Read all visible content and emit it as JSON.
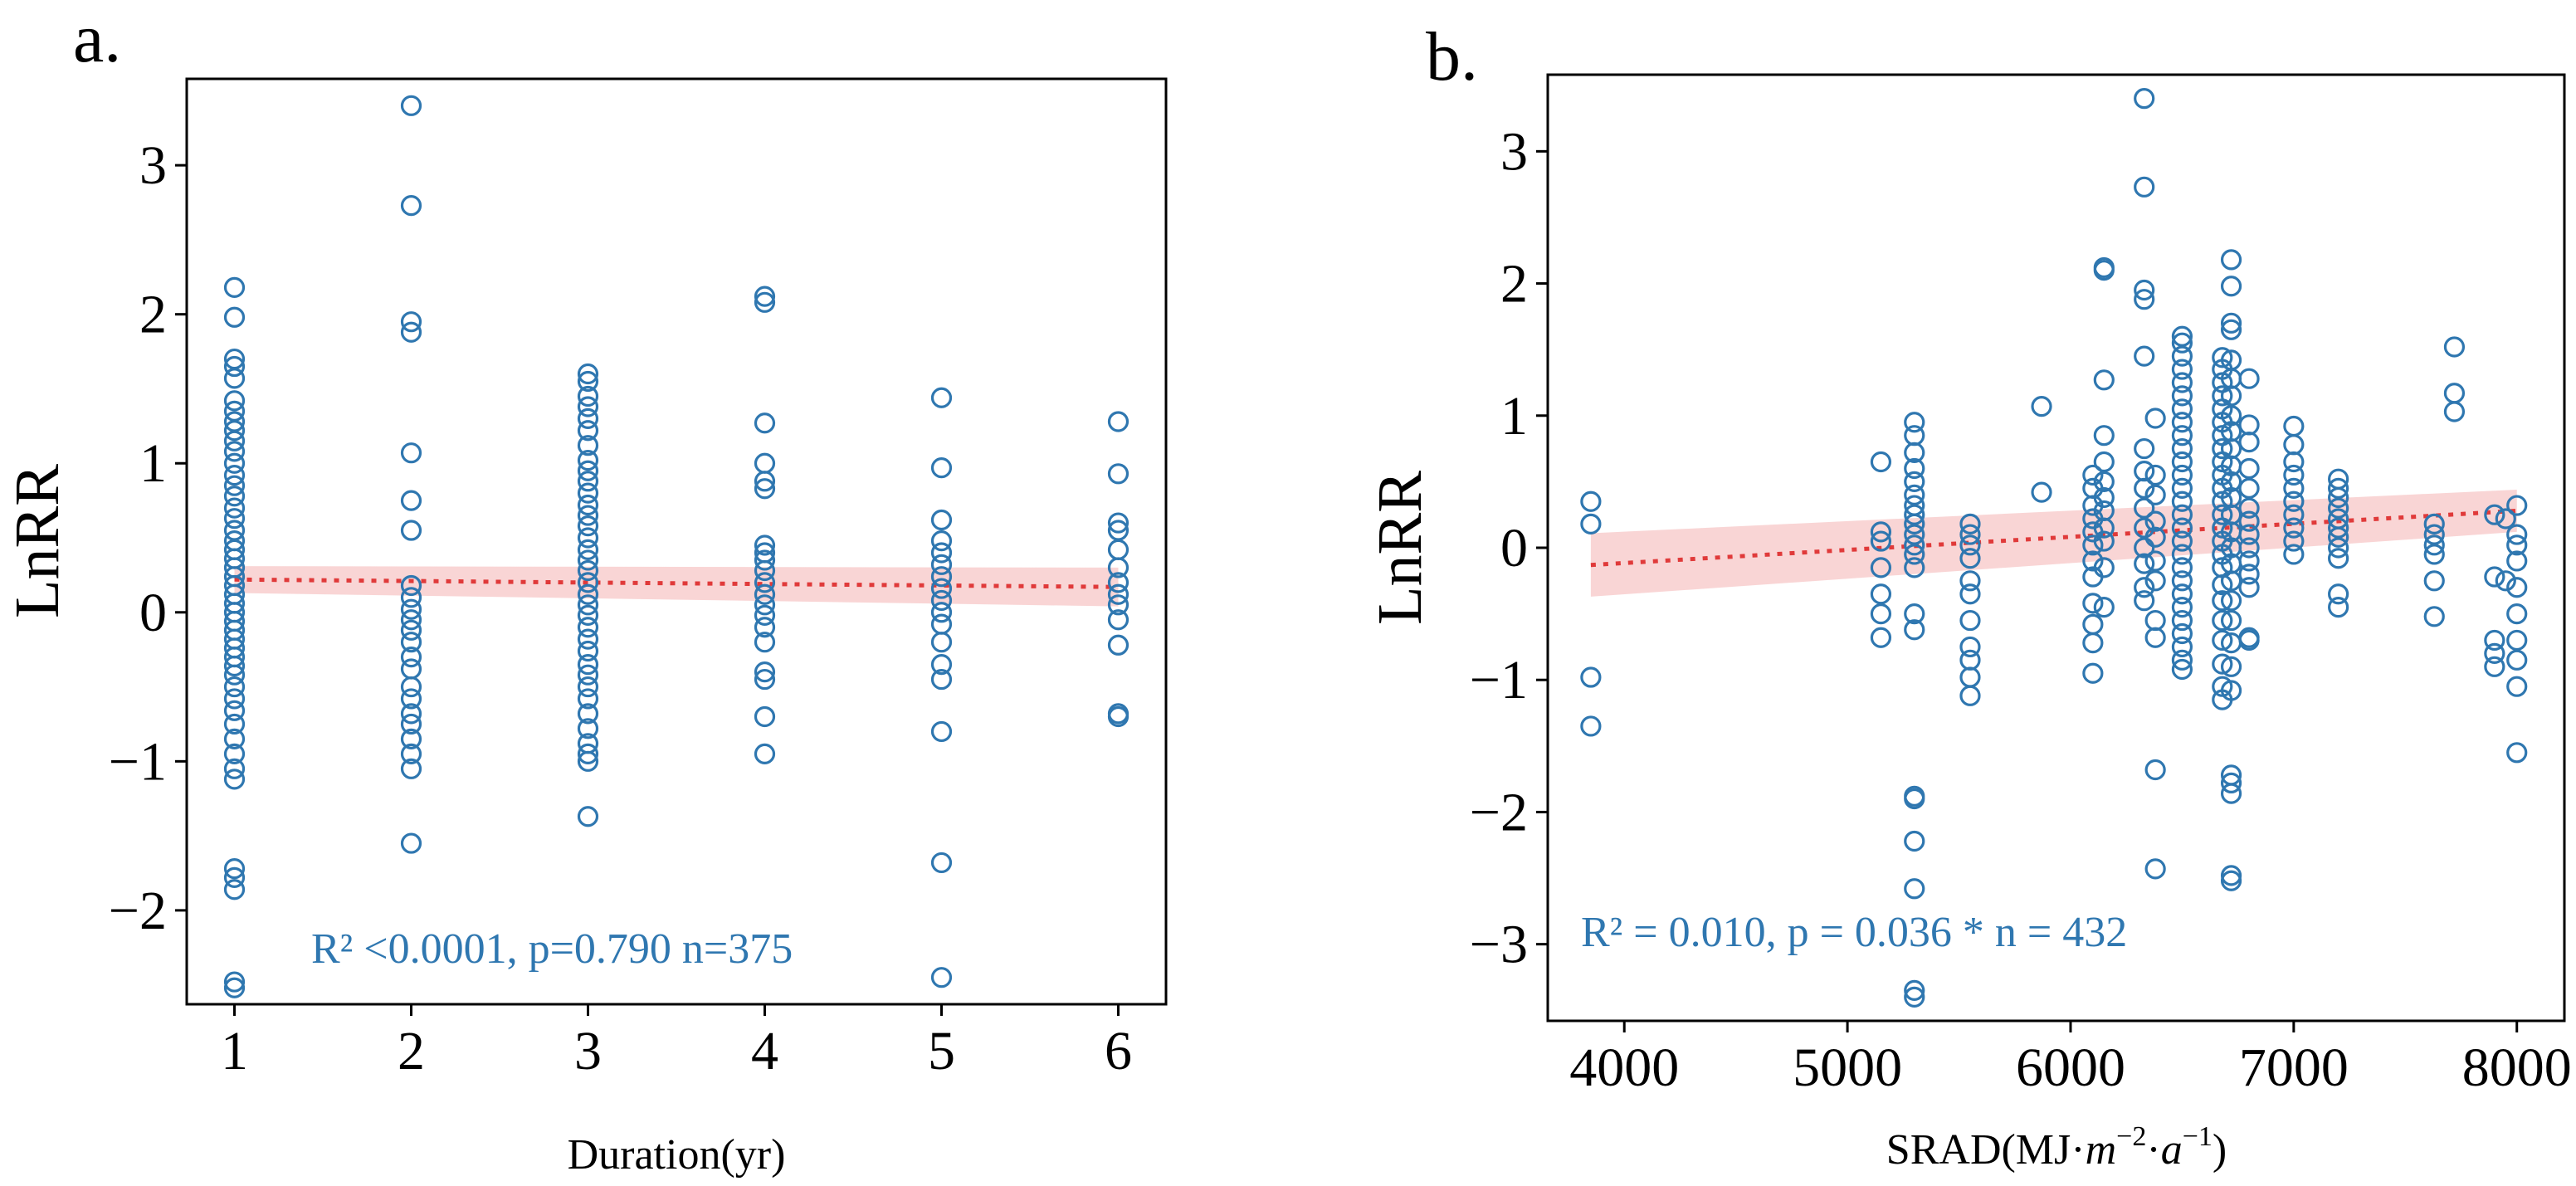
{
  "chart_data": [
    {
      "panel": "a.",
      "type": "scatter",
      "xlabel": "Duration(yr)",
      "ylabel": "LnRR",
      "xlim": [
        0.73,
        6.27
      ],
      "ylim": [
        -2.63,
        3.58
      ],
      "xticks": [
        1,
        2,
        3,
        4,
        5,
        6
      ],
      "yticks": [
        -2,
        -1,
        0,
        1,
        2,
        3
      ],
      "ytick_labels": [
        "−2",
        "−1",
        "0",
        "1",
        "2",
        "3"
      ],
      "annotation": "R² <0.0001, p=0.790 n=375",
      "annotation_color": "#2f77b0",
      "point_color": "#2f77b0",
      "fit": {
        "x": [
          1,
          6
        ],
        "y": [
          0.22,
          0.17
        ],
        "ci_half_width": [
          0.09,
          0.13
        ],
        "color": "#e03a3a"
      },
      "points": [
        {
          "x": 1,
          "y": [
            2.18,
            1.98,
            1.7,
            1.65,
            1.57,
            1.42,
            1.35,
            1.28,
            1.22,
            1.15,
            1.08,
            1.0,
            0.92,
            0.85,
            0.78,
            0.7,
            0.63,
            0.55,
            0.48,
            0.42,
            0.36,
            0.3,
            0.24,
            0.18,
            0.12,
            0.06,
            0.0,
            -0.06,
            -0.12,
            -0.18,
            -0.24,
            -0.3,
            -0.36,
            -0.42,
            -0.5,
            -0.58,
            -0.66,
            -0.75,
            -0.85,
            -0.95,
            -1.05,
            -1.12,
            -1.72,
            -1.78,
            -1.86,
            -2.48,
            -2.52
          ]
        },
        {
          "x": 2,
          "y": [
            3.4,
            2.73,
            1.95,
            1.88,
            1.07,
            0.75,
            0.55,
            0.18,
            0.1,
            0.02,
            -0.05,
            -0.12,
            -0.2,
            -0.3,
            -0.38,
            -0.5,
            -0.58,
            -0.68,
            -0.75,
            -0.85,
            -0.95,
            -1.05,
            -1.55
          ]
        },
        {
          "x": 3,
          "y": [
            1.6,
            1.55,
            1.45,
            1.38,
            1.3,
            1.22,
            1.12,
            1.02,
            0.95,
            0.88,
            0.8,
            0.72,
            0.65,
            0.58,
            0.5,
            0.42,
            0.35,
            0.28,
            0.2,
            0.12,
            0.05,
            -0.02,
            -0.1,
            -0.18,
            -0.26,
            -0.35,
            -0.42,
            -0.5,
            -0.58,
            -0.68,
            -0.78,
            -0.88,
            -0.95,
            -1.0,
            -1.37
          ]
        },
        {
          "x": 4,
          "y": [
            2.12,
            2.08,
            1.27,
            1.0,
            0.88,
            0.83,
            0.45,
            0.4,
            0.35,
            0.28,
            0.2,
            0.12,
            0.05,
            -0.02,
            -0.1,
            -0.2,
            -0.4,
            -0.45,
            -0.7,
            -0.95
          ]
        },
        {
          "x": 5,
          "y": [
            1.44,
            0.97,
            0.62,
            0.48,
            0.4,
            0.32,
            0.24,
            0.16,
            0.08,
            0.0,
            -0.08,
            -0.2,
            -0.35,
            -0.45,
            -0.8,
            -1.68,
            -2.45
          ]
        },
        {
          "x": 6,
          "y": [
            1.28,
            0.93,
            0.6,
            0.55,
            0.42,
            0.3,
            0.2,
            0.12,
            0.05,
            -0.05,
            -0.22,
            -0.68,
            -0.7
          ]
        }
      ]
    },
    {
      "panel": "b.",
      "type": "scatter",
      "xlabel_main": "SRAD(MJ·",
      "xlabel_unit_m": "m",
      "xlabel_unit_m_exp": "−2",
      "xlabel_unit_a": "a",
      "xlabel_unit_a_exp": "−1",
      "xlabel_close": ")",
      "ylabel": "LnRR",
      "xlim": [
        3657,
        8213
      ],
      "ylim": [
        -3.58,
        3.58
      ],
      "xticks": [
        4000,
        5000,
        6000,
        7000,
        8000
      ],
      "yticks": [
        -3,
        -2,
        -1,
        0,
        1,
        2,
        3
      ],
      "ytick_labels": [
        "−3",
        "−2",
        "−1",
        "0",
        "1",
        "2",
        "3"
      ],
      "annotation": "R² = 0.010, p = 0.036 *  n = 432",
      "annotation_color": "#2f77b0",
      "point_color": "#2f77b0",
      "fit": {
        "x": [
          3850,
          8000
        ],
        "y": [
          -0.13,
          0.28
        ],
        "ci_half_width": [
          0.24,
          0.16
        ],
        "color": "#e03a3a"
      },
      "points": [
        {
          "x": 3850,
          "y": [
            0.35,
            0.18,
            -0.98,
            -1.35
          ]
        },
        {
          "x": 5150,
          "y": [
            0.65,
            0.12,
            0.05,
            -0.15,
            -0.35,
            -0.5,
            -0.68
          ]
        },
        {
          "x": 5300,
          "y": [
            0.95,
            0.85,
            0.72,
            0.6,
            0.5,
            0.4,
            0.32,
            0.25,
            0.18,
            0.1,
            0.02,
            -0.05,
            -0.15,
            -0.5,
            -0.62,
            -1.88,
            -1.9,
            -2.22,
            -2.58,
            -3.35,
            -3.4
          ]
        },
        {
          "x": 5550,
          "y": [
            0.18,
            0.1,
            0.02,
            -0.08,
            -0.25,
            -0.35,
            -0.55,
            -0.75,
            -0.85,
            -0.98,
            -1.12
          ]
        },
        {
          "x": 5870,
          "y": [
            1.07,
            0.42
          ]
        },
        {
          "x": 6100,
          "y": [
            0.55,
            0.45,
            0.32,
            0.22,
            0.12,
            0.02,
            -0.1,
            -0.22,
            -0.42,
            -0.58,
            -0.72,
            -0.95
          ]
        },
        {
          "x": 6150,
          "y": [
            2.12,
            2.1,
            1.27,
            0.85,
            0.65,
            0.5,
            0.38,
            0.28,
            0.15,
            0.05,
            -0.15,
            -0.45
          ]
        },
        {
          "x": 6330,
          "y": [
            3.4,
            2.73,
            1.95,
            1.88,
            1.45,
            0.75,
            0.58,
            0.45,
            0.3,
            0.15,
            0.0,
            -0.12,
            -0.3,
            -0.4
          ]
        },
        {
          "x": 6380,
          "y": [
            0.98,
            0.55,
            0.4,
            0.2,
            0.08,
            -0.1,
            -0.25,
            -0.55,
            -0.68,
            -1.68,
            -2.43
          ]
        },
        {
          "x": 6500,
          "y": [
            1.6,
            1.55,
            1.45,
            1.35,
            1.25,
            1.15,
            1.05,
            0.95,
            0.85,
            0.75,
            0.65,
            0.55,
            0.45,
            0.35,
            0.25,
            0.15,
            0.05,
            -0.05,
            -0.15,
            -0.25,
            -0.35,
            -0.45,
            -0.55,
            -0.65,
            -0.75,
            -0.85,
            -0.92
          ]
        },
        {
          "x": 6680,
          "y": [
            1.44,
            1.35,
            1.25,
            1.15,
            1.05,
            0.95,
            0.85,
            0.75,
            0.65,
            0.55,
            0.45,
            0.35,
            0.25,
            0.15,
            0.05,
            -0.05,
            -0.15,
            -0.28,
            -0.4,
            -0.55,
            -0.7,
            -0.88,
            -1.05,
            -1.15
          ]
        },
        {
          "x": 6720,
          "y": [
            2.18,
            1.98,
            1.7,
            1.65,
            1.42,
            1.28,
            1.15,
            1.0,
            0.88,
            0.75,
            0.62,
            0.5,
            0.38,
            0.25,
            0.12,
            0.0,
            -0.12,
            -0.25,
            -0.4,
            -0.55,
            -0.72,
            -0.9,
            -1.08,
            -1.72,
            -1.78,
            -1.86,
            -2.48,
            -2.52
          ]
        },
        {
          "x": 6800,
          "y": [
            1.28,
            0.93,
            0.8,
            0.6,
            0.45,
            0.3,
            0.2,
            0.1,
            0.0,
            -0.1,
            -0.2,
            -0.3,
            -0.68,
            -0.7
          ]
        },
        {
          "x": 7000,
          "y": [
            0.92,
            0.78,
            0.65,
            0.55,
            0.45,
            0.35,
            0.25,
            0.15,
            0.05,
            -0.05
          ]
        },
        {
          "x": 7200,
          "y": [
            0.52,
            0.45,
            0.38,
            0.3,
            0.22,
            0.15,
            0.08,
            0.0,
            -0.08,
            -0.35,
            -0.45
          ]
        },
        {
          "x": 7630,
          "y": [
            0.18,
            0.1,
            0.02,
            -0.05,
            -0.25,
            -0.52
          ]
        },
        {
          "x": 7720,
          "y": [
            1.52,
            1.17,
            1.03
          ]
        },
        {
          "x": 7900,
          "y": [
            0.25,
            -0.22,
            -0.7,
            -0.8,
            -0.9
          ]
        },
        {
          "x": 7950,
          "y": [
            0.22,
            -0.25
          ]
        },
        {
          "x": 8000,
          "y": [
            0.32,
            0.1,
            0.02,
            -0.1,
            -0.3,
            -0.5,
            -0.7,
            -0.85,
            -1.05,
            -1.55
          ]
        }
      ]
    }
  ]
}
